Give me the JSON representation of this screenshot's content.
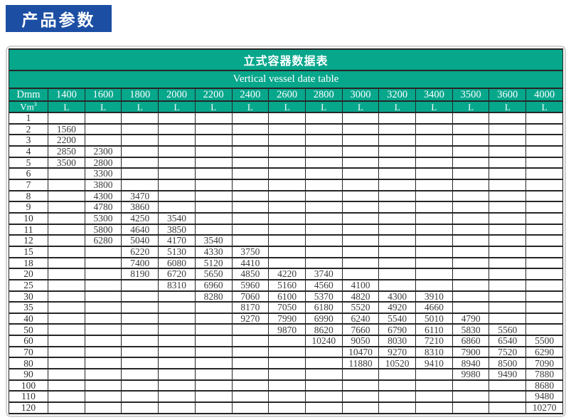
{
  "banner": {
    "label": "产品参数"
  },
  "table": {
    "title": "立式容器数据表",
    "subtitle": "Vertical vessel date table",
    "corner": {
      "diameter_label": "Dmm",
      "volume_label_base": "Vm",
      "volume_label_sup": "3"
    },
    "unit_label": "L",
    "columns": [
      "1400",
      "1600",
      "1800",
      "2000",
      "2200",
      "2400",
      "2600",
      "2800",
      "3000",
      "3200",
      "3400",
      "3500",
      "3600",
      "4000"
    ],
    "rows": [
      {
        "v": "1",
        "cells": [
          "",
          "",
          "",
          "",
          "",
          "",
          "",
          "",
          "",
          "",
          "",
          "",
          "",
          ""
        ]
      },
      {
        "v": "2",
        "cells": [
          "1560",
          "",
          "",
          "",
          "",
          "",
          "",
          "",
          "",
          "",
          "",
          "",
          "",
          ""
        ]
      },
      {
        "v": "3",
        "cells": [
          "2200",
          "",
          "",
          "",
          "",
          "",
          "",
          "",
          "",
          "",
          "",
          "",
          "",
          ""
        ]
      },
      {
        "v": "4",
        "cells": [
          "2850",
          "2300",
          "",
          "",
          "",
          "",
          "",
          "",
          "",
          "",
          "",
          "",
          "",
          ""
        ]
      },
      {
        "v": "5",
        "cells": [
          "3500",
          "2800",
          "",
          "",
          "",
          "",
          "",
          "",
          "",
          "",
          "",
          "",
          "",
          ""
        ]
      },
      {
        "v": "6",
        "cells": [
          "",
          "3300",
          "",
          "",
          "",
          "",
          "",
          "",
          "",
          "",
          "",
          "",
          "",
          ""
        ]
      },
      {
        "v": "7",
        "cells": [
          "",
          "3800",
          "",
          "",
          "",
          "",
          "",
          "",
          "",
          "",
          "",
          "",
          "",
          ""
        ]
      },
      {
        "v": "8",
        "cells": [
          "",
          "4300",
          "3470",
          "",
          "",
          "",
          "",
          "",
          "",
          "",
          "",
          "",
          "",
          ""
        ]
      },
      {
        "v": "9",
        "cells": [
          "",
          "4780",
          "3860",
          "",
          "",
          "",
          "",
          "",
          "",
          "",
          "",
          "",
          "",
          ""
        ]
      },
      {
        "v": "10",
        "cells": [
          "",
          "5300",
          "4250",
          "3540",
          "",
          "",
          "",
          "",
          "",
          "",
          "",
          "",
          "",
          ""
        ]
      },
      {
        "v": "11",
        "cells": [
          "",
          "5800",
          "4640",
          "3850",
          "",
          "",
          "",
          "",
          "",
          "",
          "",
          "",
          "",
          ""
        ]
      },
      {
        "v": "12",
        "cells": [
          "",
          "6280",
          "5040",
          "4170",
          "3540",
          "",
          "",
          "",
          "",
          "",
          "",
          "",
          "",
          ""
        ]
      },
      {
        "v": "15",
        "cells": [
          "",
          "",
          "6220",
          "5130",
          "4330",
          "3750",
          "",
          "",
          "",
          "",
          "",
          "",
          "",
          ""
        ]
      },
      {
        "v": "18",
        "cells": [
          "",
          "",
          "7400",
          "6080",
          "5120",
          "4410",
          "",
          "",
          "",
          "",
          "",
          "",
          "",
          ""
        ]
      },
      {
        "v": "20",
        "cells": [
          "",
          "",
          "8190",
          "6720",
          "5650",
          "4850",
          "4220",
          "3740",
          "",
          "",
          "",
          "",
          "",
          ""
        ]
      },
      {
        "v": "25",
        "cells": [
          "",
          "",
          "",
          "8310",
          "6960",
          "5960",
          "5160",
          "4560",
          "4100",
          "",
          "",
          "",
          "",
          ""
        ]
      },
      {
        "v": "30",
        "cells": [
          "",
          "",
          "",
          "",
          "8280",
          "7060",
          "6100",
          "5370",
          "4820",
          "4300",
          "3910",
          "",
          "",
          ""
        ]
      },
      {
        "v": "35",
        "cells": [
          "",
          "",
          "",
          "",
          "",
          "8170",
          "7050",
          "6180",
          "5520",
          "4920",
          "4660",
          "",
          "",
          ""
        ]
      },
      {
        "v": "40",
        "cells": [
          "",
          "",
          "",
          "",
          "",
          "9270",
          "7990",
          "6990",
          "6240",
          "5540",
          "5010",
          "4790",
          "",
          ""
        ]
      },
      {
        "v": "50",
        "cells": [
          "",
          "",
          "",
          "",
          "",
          "",
          "9870",
          "8620",
          "7660",
          "6790",
          "6110",
          "5830",
          "5560",
          ""
        ]
      },
      {
        "v": "60",
        "cells": [
          "",
          "",
          "",
          "",
          "",
          "",
          "",
          "10240",
          "9050",
          "8030",
          "7210",
          "6860",
          "6540",
          "5500"
        ]
      },
      {
        "v": "70",
        "cells": [
          "",
          "",
          "",
          "",
          "",
          "",
          "",
          "",
          "10470",
          "9270",
          "8310",
          "7900",
          "7520",
          "6290"
        ]
      },
      {
        "v": "80",
        "cells": [
          "",
          "",
          "",
          "",
          "",
          "",
          "",
          "",
          "11880",
          "10520",
          "9410",
          "8940",
          "8500",
          "7090"
        ]
      },
      {
        "v": "90",
        "cells": [
          "",
          "",
          "",
          "",
          "",
          "",
          "",
          "",
          "",
          "",
          "",
          "9980",
          "9490",
          "7880"
        ]
      },
      {
        "v": "100",
        "cells": [
          "",
          "",
          "",
          "",
          "",
          "",
          "",
          "",
          "",
          "",
          "",
          "",
          "",
          "8680"
        ]
      },
      {
        "v": "110",
        "cells": [
          "",
          "",
          "",
          "",
          "",
          "",
          "",
          "",
          "",
          "",
          "",
          "",
          "",
          "9480"
        ]
      },
      {
        "v": "120",
        "cells": [
          "",
          "",
          "",
          "",
          "",
          "",
          "",
          "",
          "",
          "",
          "",
          "",
          "",
          "10270"
        ]
      }
    ]
  },
  "colors": {
    "banner_bg": "#1c4fa4",
    "header_green": "#07a78c",
    "border_dark": "#262626",
    "panel_border": "#d2d2d2"
  }
}
